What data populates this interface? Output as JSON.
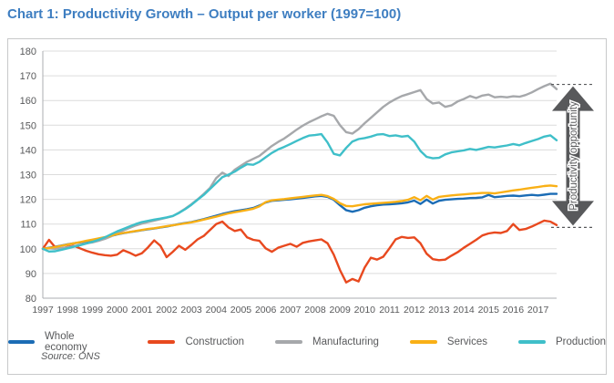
{
  "title": "Chart 1: Productivity Growth – Output per worker (1997=100)",
  "source": "Source: ONS",
  "colors": {
    "title": "#3E7EC1",
    "text": "#58595B",
    "grid": "#DCDCDC",
    "axis": "#ABADB0",
    "border": "#C8C9CA",
    "arrow": "#58595B"
  },
  "annotation": {
    "label": "Productivity opportunity",
    "top_value": 166.5,
    "bottom_value": 109
  },
  "legend": [
    {
      "label": "Whole economy",
      "color": "#1B6CB5"
    },
    {
      "label": "Construction",
      "color": "#E8491F"
    },
    {
      "label": "Manufacturing",
      "color": "#A6A8AB"
    },
    {
      "label": "Services",
      "color": "#F9B016"
    },
    {
      "label": "Production",
      "color": "#3FBFC9"
    }
  ],
  "chart_data": {
    "type": "line",
    "frequency": "quarterly",
    "x_years": [
      1997,
      1998,
      1999,
      2000,
      2001,
      2002,
      2003,
      2004,
      2005,
      2006,
      2007,
      2008,
      2009,
      2010,
      2011,
      2012,
      2013,
      2014,
      2015,
      2016,
      2017
    ],
    "ylim": [
      80,
      180
    ],
    "ytick_step": 10,
    "grid": "horizontal",
    "legend_position": "bottom",
    "series": [
      {
        "name": "Whole economy",
        "color": "#1B6CB5",
        "values": [
          100.0,
          100.4,
          100.8,
          101.3,
          101.8,
          102.2,
          102.6,
          103.0,
          103.4,
          103.9,
          104.5,
          105.2,
          105.8,
          106.3,
          106.7,
          107.1,
          107.5,
          107.9,
          108.2,
          108.6,
          109.0,
          109.5,
          110.0,
          110.4,
          110.8,
          111.4,
          112.0,
          112.7,
          113.4,
          114.1,
          114.7,
          115.2,
          115.6,
          116.0,
          116.5,
          117.5,
          118.7,
          119.4,
          119.6,
          119.8,
          120.0,
          120.3,
          120.6,
          120.9,
          121.2,
          121.4,
          121.0,
          119.8,
          117.6,
          115.6,
          115.0,
          115.6,
          116.6,
          117.2,
          117.6,
          117.9,
          118.0,
          118.2,
          118.4,
          118.8,
          119.5,
          118.1,
          119.9,
          118.3,
          119.4,
          119.8,
          120.0,
          120.2,
          120.3,
          120.5,
          120.6,
          120.8,
          121.8,
          120.9,
          121.1,
          121.4,
          121.5,
          121.3,
          121.6,
          121.8,
          121.6,
          121.9,
          122.2,
          122.2
        ]
      },
      {
        "name": "Construction",
        "color": "#E8491F",
        "values": [
          100.0,
          103.6,
          100.6,
          100.0,
          100.8,
          101.2,
          100.2,
          99.2,
          98.4,
          97.8,
          97.4,
          97.2,
          97.6,
          99.4,
          98.4,
          97.2,
          98.2,
          100.6,
          103.4,
          101.2,
          96.6,
          98.8,
          101.2,
          99.6,
          101.6,
          103.8,
          105.2,
          107.6,
          110.0,
          111.0,
          108.6,
          107.2,
          107.8,
          104.6,
          103.6,
          103.2,
          100.2,
          98.8,
          100.4,
          101.2,
          102.0,
          100.8,
          102.4,
          103.0,
          103.4,
          103.8,
          102.2,
          97.6,
          91.4,
          86.4,
          87.8,
          86.8,
          92.4,
          96.4,
          95.6,
          96.8,
          100.2,
          103.8,
          104.8,
          104.4,
          104.6,
          102.2,
          98.0,
          95.8,
          95.4,
          95.6,
          97.2,
          98.6,
          100.4,
          102.0,
          103.6,
          105.4,
          106.2,
          106.6,
          106.4,
          107.2,
          110.0,
          107.6,
          108.0,
          109.0,
          110.2,
          111.4,
          111.0,
          109.6
        ]
      },
      {
        "name": "Manufacturing",
        "color": "#A6A8AB",
        "values": [
          100.0,
          100.2,
          100.0,
          100.3,
          100.6,
          101.0,
          101.6,
          102.2,
          102.6,
          103.2,
          104.0,
          105.0,
          106.2,
          107.4,
          108.4,
          109.4,
          110.2,
          110.8,
          111.4,
          112.0,
          112.6,
          113.2,
          114.6,
          116.2,
          118.0,
          120.0,
          122.2,
          124.6,
          128.6,
          130.8,
          129.4,
          132.0,
          133.6,
          135.2,
          136.4,
          137.6,
          139.6,
          141.6,
          143.2,
          144.6,
          146.4,
          148.2,
          149.8,
          151.2,
          152.4,
          153.6,
          154.6,
          153.8,
          150.0,
          147.2,
          146.6,
          148.4,
          150.8,
          153.0,
          155.2,
          157.4,
          159.2,
          160.6,
          161.8,
          162.6,
          163.4,
          164.2,
          160.6,
          158.8,
          159.2,
          157.4,
          158.0,
          159.6,
          160.6,
          161.8,
          161.0,
          162.0,
          162.4,
          161.3,
          161.5,
          161.3,
          161.7,
          161.5,
          162.2,
          163.3,
          164.6,
          165.8,
          166.8,
          164.6
        ]
      },
      {
        "name": "Services",
        "color": "#F9B016",
        "values": [
          100.0,
          100.3,
          100.7,
          101.2,
          101.7,
          102.2,
          102.7,
          103.2,
          103.7,
          104.2,
          104.7,
          105.3,
          105.9,
          106.4,
          106.8,
          107.2,
          107.6,
          108.0,
          108.3,
          108.7,
          109.1,
          109.5,
          109.9,
          110.3,
          110.7,
          111.2,
          111.8,
          112.4,
          113.0,
          113.7,
          114.3,
          114.8,
          115.2,
          115.7,
          116.2,
          117.2,
          118.9,
          119.6,
          119.9,
          120.1,
          120.4,
          120.7,
          121.0,
          121.3,
          121.6,
          121.8,
          121.3,
          120.2,
          118.4,
          117.3,
          117.2,
          117.6,
          118.0,
          118.2,
          118.4,
          118.6,
          118.8,
          119.0,
          119.3,
          119.8,
          120.9,
          119.6,
          121.4,
          119.9,
          121.0,
          121.3,
          121.6,
          121.8,
          122.0,
          122.2,
          122.4,
          122.6,
          122.6,
          122.4,
          122.8,
          123.2,
          123.6,
          123.9,
          124.3,
          124.7,
          125.0,
          125.4,
          125.6,
          125.3
        ]
      },
      {
        "name": "Production",
        "color": "#3FBFC9",
        "values": [
          100.0,
          98.9,
          99.0,
          99.6,
          100.2,
          100.8,
          101.4,
          102.1,
          102.8,
          103.6,
          104.6,
          105.8,
          107.0,
          108.0,
          109.0,
          110.0,
          110.8,
          111.3,
          111.8,
          112.2,
          112.7,
          113.3,
          114.5,
          116.0,
          117.8,
          119.8,
          121.8,
          124.2,
          126.6,
          129.0,
          130.0,
          131.2,
          132.8,
          134.2,
          134.0,
          135.2,
          137.0,
          138.8,
          140.2,
          141.2,
          142.4,
          143.6,
          144.8,
          145.8,
          146.0,
          146.4,
          143.0,
          138.4,
          137.8,
          140.8,
          143.4,
          144.4,
          144.8,
          145.4,
          146.2,
          146.4,
          145.6,
          145.9,
          145.4,
          145.7,
          143.4,
          139.6,
          137.2,
          136.6,
          136.8,
          138.2,
          139.0,
          139.4,
          139.8,
          140.4,
          140.0,
          140.6,
          141.2,
          141.0,
          141.4,
          141.8,
          142.4,
          141.9,
          142.8,
          143.6,
          144.4,
          145.4,
          145.9,
          143.9
        ]
      }
    ]
  }
}
